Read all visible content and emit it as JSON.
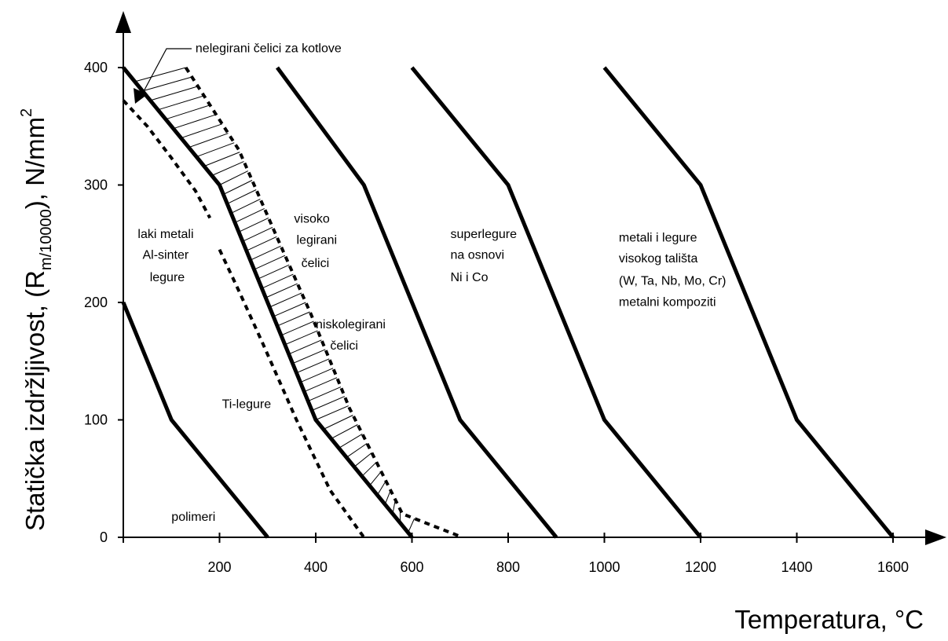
{
  "chart_data": {
    "type": "line",
    "title": "",
    "xlabel": "Temperatura,  °C",
    "ylabel_main": "Statička izdržljivost,  (R",
    "ylabel_sub": "m/10000",
    "ylabel_tail": "), N/mm",
    "ylabel_sup": "2",
    "xlim": [
      0,
      1700
    ],
    "ylim": [
      0,
      420
    ],
    "x_ticks": [
      0,
      200,
      400,
      600,
      800,
      1000,
      1200,
      1400,
      1600
    ],
    "x_tick_labels": [
      "",
      "200",
      "400",
      "600",
      "800",
      "1000",
      "1200",
      "1400",
      "1600"
    ],
    "y_ticks": [
      0,
      100,
      200,
      300,
      400
    ],
    "y_tick_labels": [
      "0",
      "100",
      "200",
      "300",
      "400"
    ],
    "grid": false,
    "legend": "none",
    "series": [
      {
        "style": "solid",
        "points": [
          [
            0,
            200
          ],
          [
            100,
            100
          ],
          [
            300,
            0
          ]
        ]
      },
      {
        "style": "dashed",
        "points": [
          [
            0,
            372
          ],
          [
            50,
            350
          ],
          [
            100,
            323
          ],
          [
            150,
            295
          ],
          [
            180,
            272
          ]
        ]
      },
      {
        "style": "dashed",
        "points": [
          [
            200,
            245
          ],
          [
            240,
            210
          ],
          [
            290,
            165
          ],
          [
            360,
            100
          ],
          [
            430,
            40
          ],
          [
            500,
            0
          ]
        ]
      },
      {
        "style": "solid",
        "points": [
          [
            0,
            400
          ],
          [
            200,
            300
          ],
          [
            400,
            100
          ],
          [
            600,
            0
          ]
        ]
      },
      {
        "style": "dashed",
        "points": [
          [
            130,
            400
          ],
          [
            240,
            330
          ],
          [
            320,
            255
          ],
          [
            390,
            190
          ],
          [
            470,
            110
          ],
          [
            580,
            20
          ],
          [
            705,
            0
          ]
        ]
      },
      {
        "style": "solid",
        "points": [
          [
            320,
            400
          ],
          [
            500,
            300
          ],
          [
            700,
            100
          ],
          [
            900,
            0
          ]
        ]
      },
      {
        "style": "solid",
        "points": [
          [
            600,
            400
          ],
          [
            800,
            300
          ],
          [
            1000,
            100
          ],
          [
            1200,
            0
          ]
        ]
      },
      {
        "style": "solid",
        "points": [
          [
            1000,
            400
          ],
          [
            1200,
            300
          ],
          [
            1400,
            100
          ],
          [
            1600,
            0
          ]
        ]
      }
    ],
    "annotations": [
      {
        "text": "nelegirani čelici za kotlove",
        "x": 150,
        "y": 413
      },
      {
        "text": "visoko",
        "x": 355,
        "y": 268
      },
      {
        "text": "legirani",
        "x": 360,
        "y": 250
      },
      {
        "text": "čelici",
        "x": 370,
        "y": 230
      },
      {
        "text": "laki metali",
        "x": 30,
        "y": 255
      },
      {
        "text": "Al-sinter",
        "x": 40,
        "y": 237
      },
      {
        "text": "legure",
        "x": 55,
        "y": 218
      },
      {
        "text": "niskolegirani",
        "x": 400,
        "y": 178
      },
      {
        "text": "čelici",
        "x": 430,
        "y": 160
      },
      {
        "text": "Ti-legure",
        "x": 205,
        "y": 110
      },
      {
        "text": "polimeri",
        "x": 100,
        "y": 14
      },
      {
        "text": "superlegure",
        "x": 680,
        "y": 255
      },
      {
        "text": "na osnovi",
        "x": 680,
        "y": 237
      },
      {
        "text": "Ni i Co",
        "x": 680,
        "y": 218
      },
      {
        "text": "metali i legure",
        "x": 1030,
        "y": 252
      },
      {
        "text": "visokog tališta",
        "x": 1030,
        "y": 234
      },
      {
        "text": "(W, Ta, Nb, Mo, Cr)",
        "x": 1030,
        "y": 215
      },
      {
        "text": "metalni kompoziti",
        "x": 1030,
        "y": 197
      }
    ]
  }
}
